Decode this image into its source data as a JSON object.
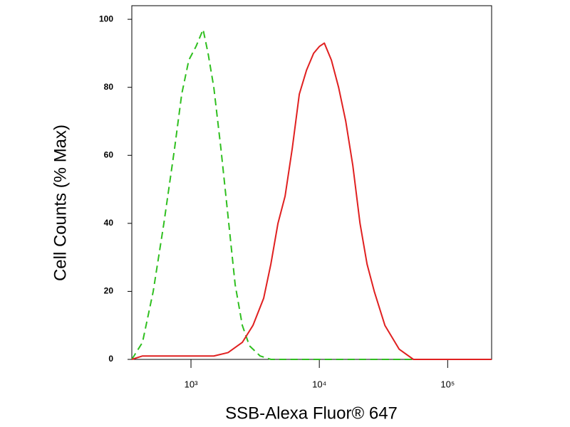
{
  "chart_data": {
    "type": "line",
    "x_label": "SSB-Alexa Fluor® 647",
    "y_label": "Cell Counts (% Max)",
    "xscale": "log",
    "xlim": [
      346,
      220000
    ],
    "ylim": [
      0,
      104
    ],
    "xticks": [
      {
        "value": 1000,
        "label": "10³"
      },
      {
        "value": 10000,
        "label": "10⁴"
      },
      {
        "value": 100000,
        "label": "10⁵"
      }
    ],
    "yticks": [
      0,
      20,
      40,
      60,
      80,
      100
    ],
    "series": [
      {
        "color": "#2fbf1f",
        "style": "dashed",
        "x": [
          346,
          419,
          508,
          615,
          745,
          847,
          962,
          1094,
          1243,
          1359,
          1506,
          1711,
          1945,
          2209,
          2512,
          2855,
          3459,
          4191,
          220000
        ],
        "values": [
          0,
          5,
          20,
          40,
          62,
          78,
          88,
          92,
          97,
          90,
          80,
          62,
          42,
          22,
          10,
          4,
          1,
          0,
          0
        ]
      },
      {
        "color": "#e02020",
        "style": "solid",
        "x": [
          346,
          419,
          699,
          1166,
          1506,
          1945,
          2512,
          3041,
          3686,
          4191,
          4762,
          5411,
          6152,
          6985,
          7943,
          9030,
          10000,
          10940,
          12420,
          14130,
          16070,
          18240,
          20750,
          23550,
          26790,
          32430,
          41880,
          54080,
          220000
        ],
        "values": [
          0,
          1,
          1,
          1,
          1,
          2,
          5,
          10,
          18,
          28,
          40,
          48,
          62,
          78,
          85,
          90,
          92,
          93,
          88,
          80,
          70,
          57,
          40,
          28,
          20,
          10,
          3,
          0,
          0
        ]
      }
    ]
  }
}
